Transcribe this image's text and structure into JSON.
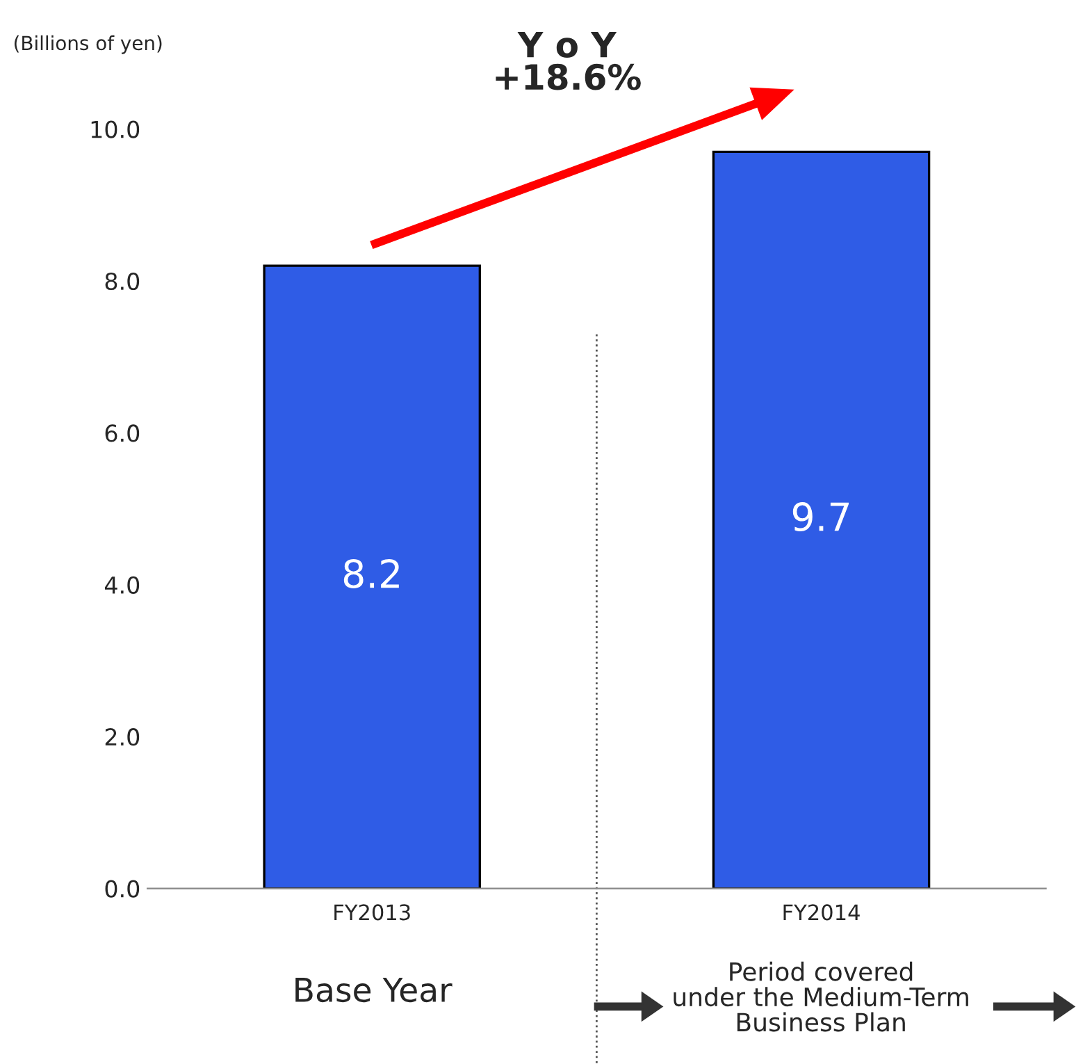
{
  "chart_data": {
    "type": "bar",
    "ylabel": "(Billions of yen)",
    "categories": [
      "FY2013",
      "FY2014"
    ],
    "values": [
      8.2,
      9.7
    ],
    "color": "#2f5ce6",
    "data_labels": true,
    "ylim": [
      0,
      10
    ],
    "yticks": [
      {
        "value": 0,
        "label": "0.0"
      },
      {
        "value": 2,
        "label": "2.0"
      },
      {
        "value": 4,
        "label": "4.0"
      },
      {
        "value": 6,
        "label": "6.0"
      },
      {
        "value": 8,
        "label": "8.0"
      },
      {
        "value": 10,
        "label": "10.0"
      }
    ],
    "annotations": [
      "Y o Y\n+18.6%",
      "Base Year",
      "Period covered\nunder the Medium-Term\nBusiness Plan"
    ],
    "grid": false,
    "legend": false
  }
}
